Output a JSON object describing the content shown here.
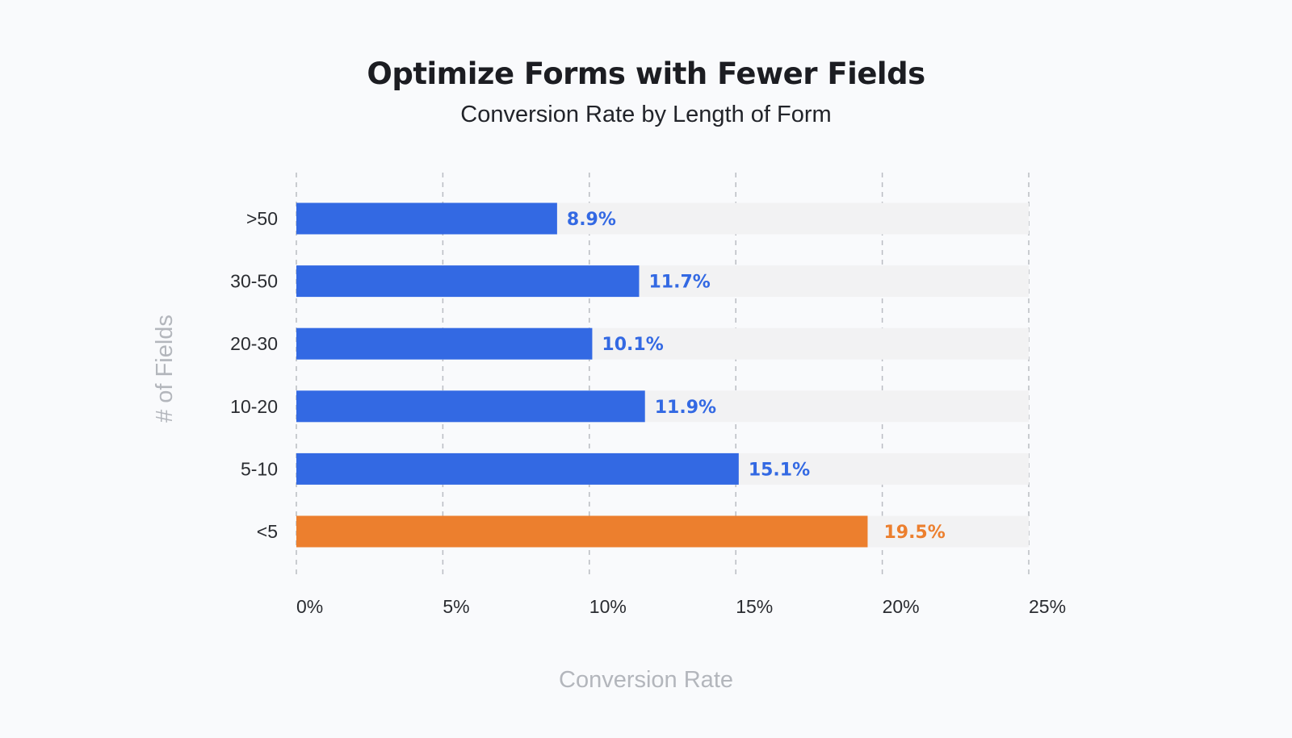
{
  "chart_data": {
    "type": "bar",
    "orientation": "horizontal",
    "title": "Optimize Forms with Fewer Fields",
    "subtitle": "Conversion Rate by Length of Form",
    "xlabel": "Conversion Rate",
    "ylabel": "# of Fields",
    "xlim": [
      0,
      25
    ],
    "x_ticks": [
      {
        "value": 0,
        "label": "0%"
      },
      {
        "value": 5,
        "label": "5%"
      },
      {
        "value": 10,
        "label": "10%"
      },
      {
        "value": 15,
        "label": "15%"
      },
      {
        "value": 20,
        "label": "20%"
      },
      {
        "value": 25,
        "label": "25%"
      }
    ],
    "grid": true,
    "categories": [
      ">50",
      "30-50",
      "20-30",
      "10-20",
      "5-10",
      "<5"
    ],
    "values": [
      8.9,
      11.7,
      10.1,
      11.9,
      15.1,
      19.5
    ],
    "value_labels": [
      "8.9%",
      "11.7%",
      "10.1%",
      "11.9%",
      "15.1%",
      "19.5%"
    ],
    "highlight_category": "<5",
    "colors": {
      "bar": "#3369e3",
      "highlight": "#ec7f2e",
      "track": "#f2f2f3",
      "background": "#f9fafc"
    }
  }
}
